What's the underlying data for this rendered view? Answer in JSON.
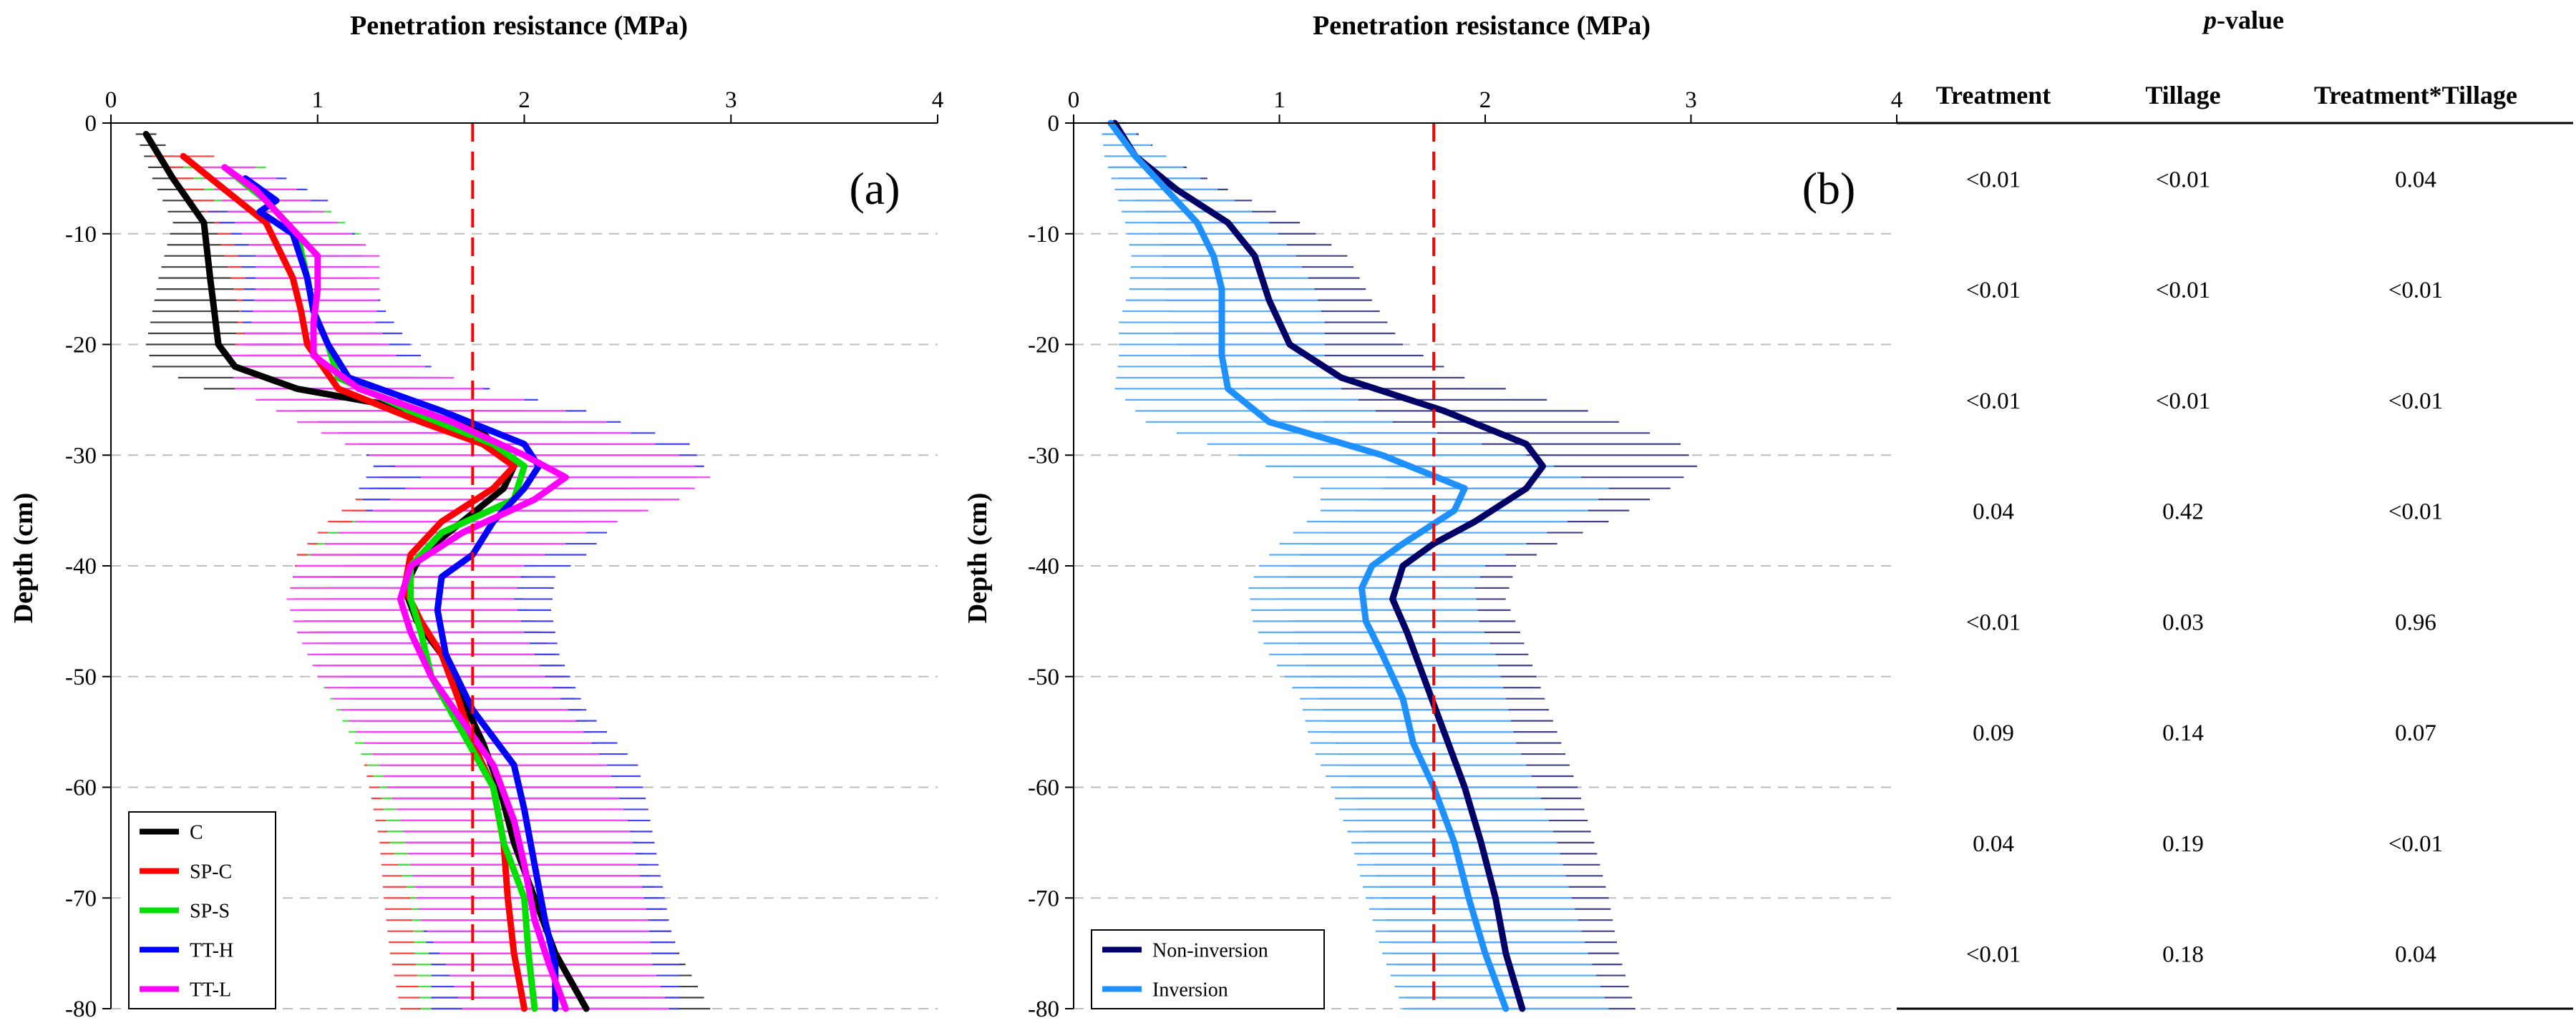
{
  "chart_data": [
    {
      "type": "line",
      "panel_label": "(a)",
      "title": "Penetration resistance (MPa)",
      "xlabel": "Penetration resistance (MPa)",
      "ylabel": "Depth (cm)",
      "xlim": [
        0,
        4
      ],
      "ylim": [
        -80,
        0
      ],
      "xticks": [
        "0",
        "1",
        "2",
        "3",
        "4"
      ],
      "yticks": [
        "0",
        "-10",
        "-20",
        "-30",
        "-40",
        "-50",
        "-60",
        "-70",
        "-80"
      ],
      "grid": "horizontal dashed",
      "reference_line": 1.75,
      "legend_position": "bottom-left",
      "series": [
        {
          "name": "C",
          "color": "#000000",
          "depth": [
            -1,
            -5,
            -9,
            -14,
            -17,
            -20,
            -22,
            -24,
            -26,
            -28,
            -31,
            -33,
            -36,
            -39,
            -42,
            -45,
            -48,
            -52,
            -56,
            -60,
            -65,
            -70,
            -75,
            -80
          ],
          "values": [
            0.17,
            0.3,
            0.45,
            0.48,
            0.5,
            0.52,
            0.6,
            0.9,
            1.5,
            1.8,
            1.95,
            1.9,
            1.7,
            1.5,
            1.42,
            1.48,
            1.6,
            1.7,
            1.8,
            1.88,
            1.95,
            2.05,
            2.15,
            2.3
          ],
          "errors": [
            0.05,
            0.1,
            0.15,
            0.25,
            0.3,
            0.35,
            0.4,
            0.45,
            0.5,
            0.55,
            0.6,
            0.6,
            0.6,
            0.6,
            0.55,
            0.55,
            0.55,
            0.55,
            0.55,
            0.55,
            0.6,
            0.6,
            0.6,
            0.6
          ]
        },
        {
          "name": "SP-C",
          "color": "#ff0000",
          "depth": [
            -3,
            -6,
            -9,
            -14,
            -17,
            -20,
            -24,
            -27,
            -29,
            -31,
            -33,
            -36,
            -39,
            -42,
            -45,
            -48,
            -52,
            -56,
            -60,
            -65,
            -70,
            -75,
            -80
          ],
          "values": [
            0.35,
            0.55,
            0.75,
            0.88,
            0.92,
            0.95,
            1.1,
            1.5,
            1.8,
            1.95,
            1.85,
            1.6,
            1.45,
            1.42,
            1.5,
            1.6,
            1.68,
            1.75,
            1.85,
            1.9,
            1.92,
            1.95,
            2.0
          ],
          "errors": [
            0.15,
            0.2,
            0.25,
            0.3,
            0.3,
            0.35,
            0.4,
            0.5,
            0.55,
            0.6,
            0.6,
            0.55,
            0.55,
            0.55,
            0.55,
            0.55,
            0.55,
            0.55,
            0.6,
            0.6,
            0.6,
            0.6,
            0.6
          ]
        },
        {
          "name": "SP-S",
          "color": "#00e000",
          "depth": [
            -4,
            -7,
            -10,
            -14,
            -17,
            -20,
            -23,
            -26,
            -29,
            -31,
            -34,
            -37,
            -40,
            -43,
            -46,
            -50,
            -55,
            -60,
            -65,
            -70,
            -75,
            -80
          ],
          "values": [
            0.55,
            0.75,
            0.9,
            0.95,
            0.98,
            1.05,
            1.1,
            1.45,
            1.85,
            2.0,
            1.95,
            1.6,
            1.45,
            1.45,
            1.5,
            1.55,
            1.7,
            1.85,
            1.9,
            2.0,
            2.02,
            2.05
          ],
          "errors": [
            0.2,
            0.25,
            0.3,
            0.3,
            0.35,
            0.35,
            0.4,
            0.5,
            0.55,
            0.6,
            0.55,
            0.55,
            0.55,
            0.55,
            0.55,
            0.55,
            0.55,
            0.55,
            0.55,
            0.55,
            0.55,
            0.55
          ]
        },
        {
          "name": "TT-H",
          "color": "#0000ff",
          "depth": [
            -5,
            -7,
            -8,
            -10,
            -14,
            -17,
            -20,
            -23,
            -26,
            -29,
            -31,
            -33,
            -36,
            -39,
            -41,
            -44,
            -48,
            -53,
            -58,
            -62,
            -67,
            -72,
            -76,
            -80
          ],
          "values": [
            0.65,
            0.8,
            0.72,
            0.88,
            0.95,
            0.98,
            1.05,
            1.15,
            1.6,
            2.0,
            2.07,
            2.0,
            1.85,
            1.75,
            1.6,
            1.58,
            1.62,
            1.75,
            1.95,
            2.0,
            2.05,
            2.1,
            2.15,
            2.15
          ],
          "errors": [
            0.2,
            0.25,
            0.25,
            0.3,
            0.3,
            0.35,
            0.4,
            0.45,
            0.7,
            0.8,
            0.8,
            0.8,
            0.6,
            0.55,
            0.55,
            0.55,
            0.55,
            0.55,
            0.6,
            0.6,
            0.6,
            0.6,
            0.6,
            0.6
          ]
        },
        {
          "name": "TT-L",
          "color": "#ff00ff",
          "depth": [
            -4,
            -6,
            -9,
            -12,
            -15,
            -18,
            -21,
            -24,
            -27,
            -30,
            -32,
            -34,
            -37,
            -40,
            -43,
            -46,
            -50,
            -54,
            -58,
            -63,
            -67,
            -72,
            -76,
            -80
          ],
          "values": [
            0.55,
            0.7,
            0.85,
            1.0,
            1.0,
            0.98,
            0.98,
            1.2,
            1.65,
            2.0,
            2.2,
            2.05,
            1.7,
            1.45,
            1.4,
            1.45,
            1.55,
            1.7,
            1.85,
            1.95,
            2.0,
            2.05,
            2.12,
            2.2
          ],
          "errors": [
            0.15,
            0.2,
            0.25,
            0.3,
            0.3,
            0.3,
            0.4,
            0.6,
            0.75,
            0.75,
            0.7,
            0.7,
            0.6,
            0.55,
            0.55,
            0.55,
            0.55,
            0.55,
            0.55,
            0.55,
            0.55,
            0.55,
            0.5,
            0.5
          ]
        }
      ]
    },
    {
      "type": "line",
      "panel_label": "(b)",
      "title": "Penetration resistance (MPa)",
      "xlabel": "Penetration resistance (MPa)",
      "ylabel": "Depth (cm)",
      "xlim": [
        0,
        4
      ],
      "ylim": [
        -80,
        0
      ],
      "xticks": [
        "0",
        "1",
        "2",
        "3",
        "4"
      ],
      "yticks": [
        "0",
        "-10",
        "-20",
        "-30",
        "-40",
        "-50",
        "-60",
        "-70",
        "-80"
      ],
      "grid": "horizontal dashed",
      "reference_line": 1.75,
      "legend_position": "bottom-left",
      "series": [
        {
          "name": "Non-inversion",
          "color": "#000066",
          "depth": [
            0,
            -3,
            -6,
            -9,
            -12,
            -16,
            -20,
            -23,
            -26,
            -29,
            -31,
            -33,
            -36,
            -38,
            -40,
            -43,
            -46,
            -50,
            -55,
            -60,
            -65,
            -70,
            -75,
            -80
          ],
          "values": [
            0.2,
            0.3,
            0.5,
            0.75,
            0.88,
            0.95,
            1.05,
            1.3,
            1.8,
            2.2,
            2.28,
            2.2,
            1.95,
            1.75,
            1.6,
            1.55,
            1.62,
            1.7,
            1.8,
            1.9,
            1.98,
            2.05,
            2.1,
            2.18
          ],
          "errors": [
            0.05,
            0.15,
            0.25,
            0.35,
            0.45,
            0.5,
            0.55,
            0.6,
            0.7,
            0.75,
            0.75,
            0.7,
            0.65,
            0.6,
            0.55,
            0.55,
            0.55,
            0.55,
            0.55,
            0.55,
            0.55,
            0.55,
            0.55,
            0.55
          ]
        },
        {
          "name": "Inversion",
          "color": "#1e90ff",
          "depth": [
            0,
            -3,
            -6,
            -9,
            -12,
            -15,
            -18,
            -21,
            -24,
            -27,
            -30,
            -33,
            -35,
            -38,
            -40,
            -42,
            -45,
            -48,
            -52,
            -56,
            -60,
            -65,
            -70,
            -75,
            -80
          ],
          "values": [
            0.18,
            0.3,
            0.45,
            0.6,
            0.68,
            0.72,
            0.72,
            0.72,
            0.75,
            0.95,
            1.5,
            1.9,
            1.85,
            1.6,
            1.45,
            1.4,
            1.42,
            1.5,
            1.6,
            1.65,
            1.75,
            1.85,
            1.92,
            2.0,
            2.1
          ],
          "errors": [
            0.05,
            0.15,
            0.25,
            0.35,
            0.4,
            0.45,
            0.5,
            0.5,
            0.55,
            0.6,
            0.7,
            0.7,
            0.65,
            0.6,
            0.55,
            0.55,
            0.55,
            0.55,
            0.5,
            0.5,
            0.5,
            0.5,
            0.5,
            0.5,
            0.5
          ]
        }
      ]
    },
    {
      "type": "table",
      "title_italic": "p",
      "title_rest": "-value",
      "columns": [
        "Treatment",
        "Tillage",
        "Treatment*Tillage"
      ],
      "rows": [
        [
          "<0.01",
          "<0.01",
          "0.04"
        ],
        [
          "<0.01",
          "<0.01",
          "<0.01"
        ],
        [
          "<0.01",
          "<0.01",
          "<0.01"
        ],
        [
          "0.04",
          "0.42",
          "<0.01"
        ],
        [
          "<0.01",
          "0.03",
          "0.96"
        ],
        [
          "0.09",
          "0.14",
          "0.07"
        ],
        [
          "0.04",
          "0.19",
          "<0.01"
        ],
        [
          "<0.01",
          "0.18",
          "0.04"
        ]
      ]
    }
  ]
}
